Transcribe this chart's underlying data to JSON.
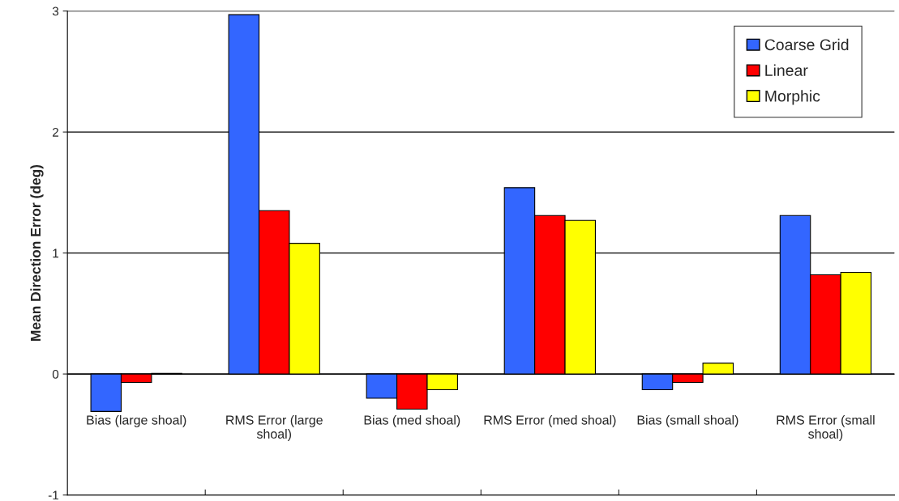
{
  "chart_data": {
    "type": "bar",
    "ylabel": "Mean Direction Error (deg)",
    "categories": [
      "Bias (large shoal)",
      "RMS Error (large shoal)",
      "Bias (med shoal)",
      "RMS Error (med shoal)",
      "Bias (small shoal)",
      "RMS Error (small shoal)"
    ],
    "series": [
      {
        "name": "Coarse Grid",
        "color": "#3366ff",
        "values": [
          -0.31,
          2.97,
          -0.2,
          1.54,
          -0.13,
          1.31
        ]
      },
      {
        "name": "Linear",
        "color": "#ff0000",
        "values": [
          -0.07,
          1.35,
          -0.29,
          1.31,
          -0.07,
          0.82
        ]
      },
      {
        "name": "Morphic",
        "color": "#ffff00",
        "values": [
          0.005,
          1.08,
          -0.13,
          1.27,
          0.09,
          0.84
        ]
      }
    ],
    "ylim": [
      -1,
      3
    ],
    "yticks": [
      -1,
      0,
      1,
      2,
      3
    ],
    "grid": "y",
    "legend": "top right"
  }
}
